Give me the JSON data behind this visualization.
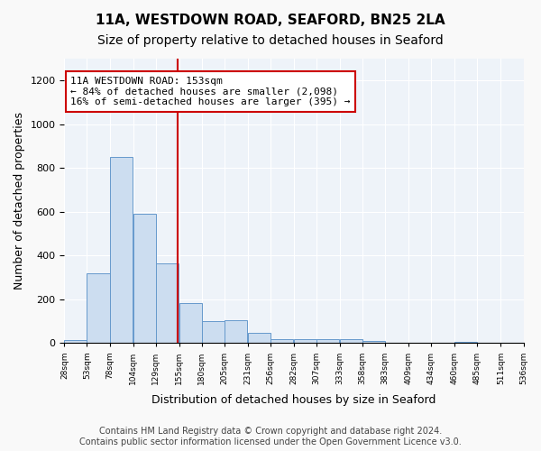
{
  "title": "11A, WESTDOWN ROAD, SEAFORD, BN25 2LA",
  "subtitle": "Size of property relative to detached houses in Seaford",
  "xlabel": "Distribution of detached houses by size in Seaford",
  "ylabel": "Number of detached properties",
  "bar_edges": [
    28,
    53,
    78,
    104,
    129,
    155,
    180,
    205,
    231,
    256,
    282,
    307,
    333,
    358,
    383,
    409,
    434,
    460,
    485,
    511,
    536
  ],
  "bar_heights": [
    15,
    320,
    850,
    590,
    365,
    185,
    100,
    105,
    48,
    20,
    18,
    17,
    18,
    10,
    0,
    0,
    0,
    8,
    0,
    0,
    0
  ],
  "bar_color": "#ccddf0",
  "bar_edge_color": "#6699cc",
  "vline_x": 153,
  "vline_color": "#cc0000",
  "annotation_box_text": "11A WESTDOWN ROAD: 153sqm\n← 84% of detached houses are smaller (2,098)\n16% of semi-detached houses are larger (395) →",
  "annotation_box_color": "#ffffff",
  "annotation_box_edge_color": "#cc0000",
  "ylim": [
    0,
    1300
  ],
  "yticks": [
    0,
    200,
    400,
    600,
    800,
    1000,
    1200
  ],
  "tick_labels": [
    "28sqm",
    "53sqm",
    "78sqm",
    "104sqm",
    "129sqm",
    "155sqm",
    "180sqm",
    "205sqm",
    "231sqm",
    "256sqm",
    "282sqm",
    "307sqm",
    "333sqm",
    "358sqm",
    "383sqm",
    "409sqm",
    "434sqm",
    "460sqm",
    "485sqm",
    "511sqm",
    "536sqm"
  ],
  "bg_color": "#eef3f9",
  "grid_color": "#ffffff",
  "footer_text": "Contains HM Land Registry data © Crown copyright and database right 2024.\nContains public sector information licensed under the Open Government Licence v3.0.",
  "title_fontsize": 11,
  "subtitle_fontsize": 10,
  "xlabel_fontsize": 9,
  "ylabel_fontsize": 9,
  "annotation_fontsize": 8,
  "footer_fontsize": 7
}
